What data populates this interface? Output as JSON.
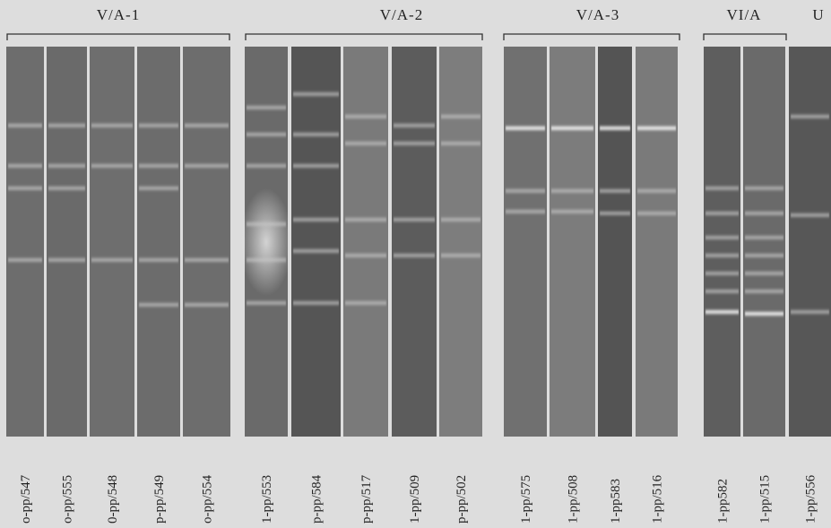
{
  "groups": [
    {
      "label": "V/A-1",
      "lanes": [
        "o-pp/547",
        "o-pp/555",
        "0-pp/548",
        "p-pp/549",
        "o-pp/554"
      ]
    },
    {
      "label": "V/A-2",
      "lanes": [
        "1-pp/553",
        "p-pp/584",
        "p-pp/517",
        "1-pp/509",
        "p-pp/502"
      ]
    },
    {
      "label": "V/A-3",
      "lanes": [
        "1-pp/575",
        "1-pp/508",
        "1-pp583",
        "1-pp/516"
      ]
    },
    {
      "label": "VI/A",
      "lanes": [
        "1-pp582",
        "1-pp/515"
      ]
    },
    {
      "label": "U",
      "lanes": [
        "1-pp/556"
      ]
    }
  ]
}
